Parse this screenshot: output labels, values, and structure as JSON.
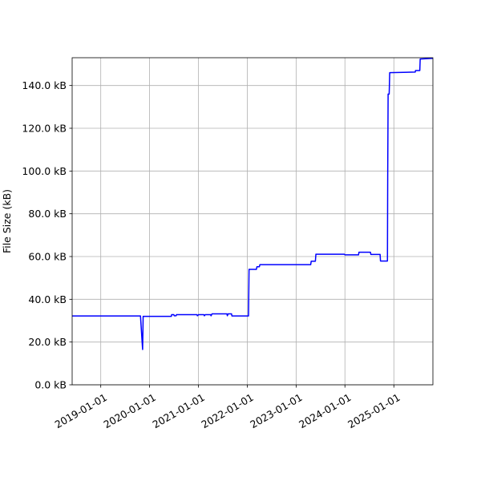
{
  "chart_data": {
    "type": "line",
    "title": "",
    "xlabel": "",
    "ylabel": "File Size (kB)",
    "x_is_date": true,
    "xlim": [
      "2018-06-01",
      "2025-10-20"
    ],
    "ylim": [
      0,
      153
    ],
    "grid": true,
    "x_ticks": [
      "2019-01-01",
      "2020-01-01",
      "2021-01-01",
      "2022-01-01",
      "2023-01-01",
      "2024-01-01",
      "2025-01-01"
    ],
    "y_ticks": [
      0,
      20,
      40,
      60,
      80,
      100,
      120,
      140
    ],
    "y_tick_labels": [
      "0.0 kB",
      "20.0 kB",
      "40.0 kB",
      "60.0 kB",
      "80.0 kB",
      "100.0 kB",
      "120.0 kB",
      "140.0 kB"
    ],
    "line_color": "#0000ff",
    "series": [
      {
        "points": [
          [
            "2018-06-01",
            32.2
          ],
          [
            "2019-10-25",
            32.2
          ],
          [
            "2019-11-10",
            16.5
          ],
          [
            "2019-11-14",
            32.0
          ],
          [
            "2020-06-12",
            32.0
          ],
          [
            "2020-06-14",
            32.8
          ],
          [
            "2020-07-01",
            32.8
          ],
          [
            "2020-07-03",
            32.3
          ],
          [
            "2020-07-18",
            32.3
          ],
          [
            "2020-07-20",
            32.8
          ],
          [
            "2020-12-20",
            32.8
          ],
          [
            "2020-12-24",
            32.3
          ],
          [
            "2021-01-01",
            32.8
          ],
          [
            "2021-02-10",
            32.8
          ],
          [
            "2021-02-14",
            32.3
          ],
          [
            "2021-02-20",
            32.8
          ],
          [
            "2021-04-01",
            32.8
          ],
          [
            "2021-04-05",
            32.3
          ],
          [
            "2021-04-12",
            33.2
          ],
          [
            "2021-08-01",
            33.2
          ],
          [
            "2021-08-05",
            32.3
          ],
          [
            "2021-08-10",
            33.2
          ],
          [
            "2021-09-05",
            33.2
          ],
          [
            "2021-09-08",
            32.2
          ],
          [
            "2022-01-10",
            32.2
          ],
          [
            "2022-01-14",
            54.0
          ],
          [
            "2022-03-10",
            54.0
          ],
          [
            "2022-03-14",
            55.2
          ],
          [
            "2022-04-01",
            55.2
          ],
          [
            "2022-04-05",
            56.2
          ],
          [
            "2023-04-20",
            56.2
          ],
          [
            "2023-04-24",
            57.8
          ],
          [
            "2023-05-25",
            57.8
          ],
          [
            "2023-05-29",
            61.1
          ],
          [
            "2023-12-28",
            61.1
          ],
          [
            "2024-01-01",
            60.8
          ],
          [
            "2024-04-12",
            60.8
          ],
          [
            "2024-04-15",
            62.0
          ],
          [
            "2024-07-10",
            62.0
          ],
          [
            "2024-07-13",
            61.0
          ],
          [
            "2024-09-20",
            61.0
          ],
          [
            "2024-09-23",
            57.9
          ],
          [
            "2024-11-14",
            57.9
          ],
          [
            "2024-11-16",
            97.0
          ],
          [
            "2024-11-19",
            136.0
          ],
          [
            "2024-11-27",
            136.0
          ],
          [
            "2024-12-01",
            146.0
          ],
          [
            "2025-06-10",
            146.3
          ],
          [
            "2025-06-12",
            147.0
          ],
          [
            "2025-07-14",
            147.0
          ],
          [
            "2025-07-17",
            152.4
          ],
          [
            "2025-10-20",
            152.7
          ]
        ]
      }
    ]
  }
}
